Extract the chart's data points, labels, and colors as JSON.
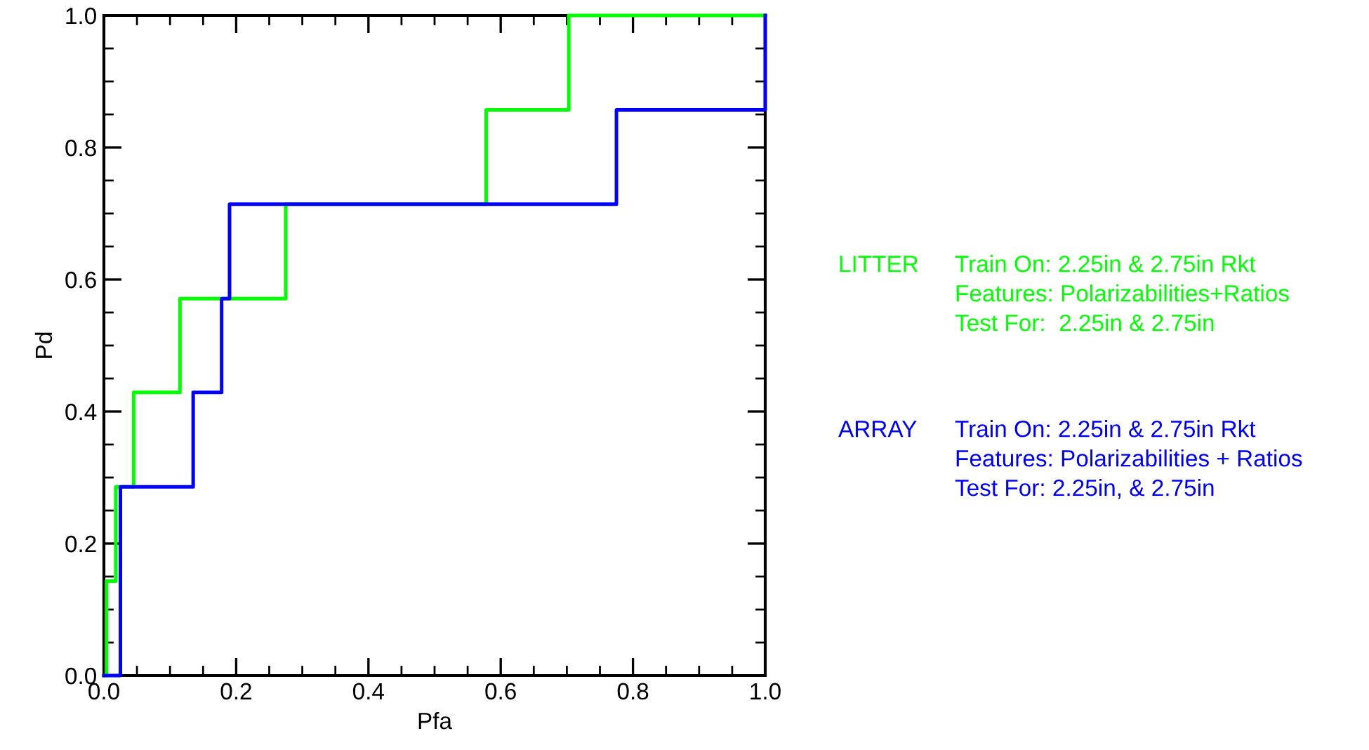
{
  "chart_data": {
    "type": "step",
    "xlabel": "Pfa",
    "ylabel": "Pd",
    "series": [
      {
        "name": "LITTER",
        "color": "#00ff00",
        "x": [
          0,
          0.004,
          0.018,
          0.045,
          0.115,
          0.275,
          0.578,
          0.703,
          1.0
        ],
        "values": [
          0,
          0.143,
          0.286,
          0.429,
          0.571,
          0.714,
          0.857,
          1.0,
          1.0
        ]
      },
      {
        "name": "ARRAY",
        "color": "#0000ff",
        "x": [
          0,
          0.025,
          0.025,
          0.135,
          0.178,
          0.19,
          0.775,
          1.0,
          1.0
        ],
        "values": [
          0,
          0.143,
          0.286,
          0.429,
          0.571,
          0.714,
          0.857,
          1.0,
          1.0
        ]
      }
    ],
    "annotations": [
      "Train On: 2.25in & 2.75in Rkt\nFeatures: Polarizabilities+Ratios\nTest For:  2.25in & 2.75in",
      "Train On: 2.25in & 2.75in Rkt\nFeatures: Polarizabilities + Ratios\nTest For: 2.25in, & 2.75in"
    ],
    "xlim": [
      0,
      1.0
    ],
    "ylim": [
      0,
      1.0
    ],
    "xticks": [
      {
        "value": 0,
        "label": "0.0"
      },
      0.2,
      0.4,
      0.6,
      0.8,
      {
        "value": 1,
        "label": "1.0"
      }
    ],
    "yticks": [
      {
        "value": 0,
        "label": "0.0"
      },
      0.2,
      0.4,
      0.6,
      0.8,
      {
        "value": 1,
        "label": "1.0"
      }
    ],
    "grid": false,
    "legend": "right"
  }
}
